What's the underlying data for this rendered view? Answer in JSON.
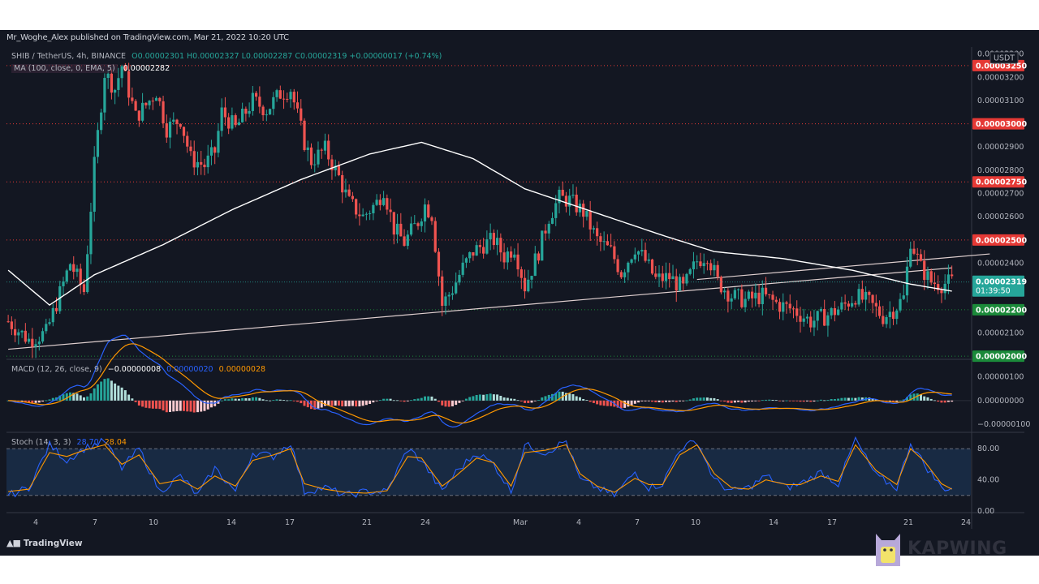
{
  "header": {
    "publisher_line": "Mr_Woghe_Alex published on TradingView.com, Mar 21, 2022 10:20 UTC"
  },
  "legend": {
    "symbol": "SHIB / TetherUS, 4h, BINANCE",
    "ohlc": "O0.00002301 H0.00002327 L0.00002287 C0.00002319 +0.00000017 (+0.74%)",
    "ma_label": "MA (100, close, 0, EMA, 5)",
    "ma_value": "0.00002282",
    "macd_label": "MACD (12, 26, close, 9)",
    "macd_hist": "−0.00000008",
    "macd_line": "0.00000020",
    "macd_signal": "0.00000028",
    "stoch_label": "Stoch (14, 3, 3)",
    "stoch_k": "28.70",
    "stoch_d": "28.04"
  },
  "colors": {
    "background": "#131722",
    "up_candle": "#26a69a",
    "down_candle": "#ef5350",
    "ma_line": "#ffffff",
    "macd_line": "#2962ff",
    "signal_line": "#ff9800",
    "stoch_k": "#2962ff",
    "stoch_d": "#ff9800",
    "resistance": "#e53935",
    "support": "#1b8a3a"
  },
  "branding": {
    "tradingview": "TradingView",
    "kapwing": "KAPWING"
  },
  "chart_data": [
    {
      "type": "candlestick",
      "title": "SHIB / TetherUS, 4h, BINANCE",
      "currency": "USDT",
      "ylim": [
        1.99e-05,
        3.33e-05
      ],
      "yticks": [
        "0.00003300",
        "0.00003200",
        "0.00003100",
        "0.00002900",
        "0.00002800",
        "0.00002700",
        "0.00002600",
        "0.00002400",
        "0.00002100"
      ],
      "x_ticks": [
        "4",
        "7",
        "10",
        "14",
        "17",
        "21",
        "24",
        "Mar",
        "4",
        "7",
        "10",
        "14",
        "17",
        "21",
        "24"
      ],
      "last_price": "0.00002319",
      "countdown": "01:39:50",
      "horizontal_levels": [
        {
          "value": 3.25e-05,
          "label": "0.00003250",
          "color": "#e53935"
        },
        {
          "value": 3e-05,
          "label": "0.00003000",
          "color": "#e53935"
        },
        {
          "value": 2.75e-05,
          "label": "0.00002750",
          "color": "#e53935"
        },
        {
          "value": 2.5e-05,
          "label": "0.00002500",
          "color": "#e53935"
        },
        {
          "value": 2.2e-05,
          "label": "0.00002200",
          "color": "#1b8a3a"
        },
        {
          "value": 2e-05,
          "label": "0.00002000",
          "color": "#1b8a3a"
        }
      ],
      "close_path": [
        [
          0,
          2.15e-05
        ],
        [
          6,
          2.07e-05
        ],
        [
          11,
          2.1e-05
        ],
        [
          15,
          2.27e-05
        ],
        [
          18,
          2.4e-05
        ],
        [
          22,
          2.28e-05
        ],
        [
          25,
          2.82e-05
        ],
        [
          28,
          3.22e-05
        ],
        [
          31,
          3.15e-05
        ],
        [
          33,
          3.25e-05
        ],
        [
          37,
          3.03e-05
        ],
        [
          40,
          3.08e-05
        ],
        [
          43,
          3.14e-05
        ],
        [
          46,
          2.98e-05
        ],
        [
          50,
          3.02e-05
        ],
        [
          53,
          2.85e-05
        ],
        [
          57,
          2.82e-05
        ],
        [
          60,
          2.88e-05
        ],
        [
          62,
          3.05e-05
        ],
        [
          66,
          2.98e-05
        ],
        [
          71,
          3.1e-05
        ],
        [
          75,
          3.06e-05
        ],
        [
          79,
          3.13e-05
        ],
        [
          82,
          3.15e-05
        ],
        [
          86,
          2.92e-05
        ],
        [
          88,
          2.84e-05
        ],
        [
          92,
          2.89e-05
        ],
        [
          96,
          2.77e-05
        ],
        [
          99,
          2.66e-05
        ],
        [
          103,
          2.6e-05
        ],
        [
          107,
          2.66e-05
        ],
        [
          109,
          2.72e-05
        ],
        [
          112,
          2.55e-05
        ],
        [
          115,
          2.49e-05
        ],
        [
          119,
          2.58e-05
        ],
        [
          121,
          2.65e-05
        ],
        [
          123,
          2.61e-05
        ],
        [
          126,
          2.22e-05
        ],
        [
          129,
          2.29e-05
        ],
        [
          132,
          2.38e-05
        ],
        [
          135,
          2.45e-05
        ],
        [
          138,
          2.48e-05
        ],
        [
          141,
          2.5e-05
        ],
        [
          144,
          2.43e-05
        ],
        [
          147,
          2.47e-05
        ],
        [
          150,
          2.3e-05
        ],
        [
          154,
          2.45e-05
        ],
        [
          157,
          2.6e-05
        ],
        [
          160,
          2.68e-05
        ],
        [
          163,
          2.67e-05
        ],
        [
          167,
          2.62e-05
        ],
        [
          171,
          2.5e-05
        ],
        [
          175,
          2.45e-05
        ],
        [
          178,
          2.36e-05
        ],
        [
          182,
          2.47e-05
        ],
        [
          185,
          2.41e-05
        ],
        [
          188,
          2.33e-05
        ],
        [
          192,
          2.34e-05
        ],
        [
          196,
          2.29e-05
        ],
        [
          200,
          2.41e-05
        ],
        [
          203,
          2.44e-05
        ],
        [
          206,
          2.32e-05
        ],
        [
          210,
          2.26e-05
        ],
        [
          214,
          2.24e-05
        ],
        [
          219,
          2.26e-05
        ],
        [
          224,
          2.22e-05
        ],
        [
          228,
          2.2e-05
        ],
        [
          233,
          2.15e-05
        ],
        [
          237,
          2.17e-05
        ],
        [
          242,
          2.21e-05
        ],
        [
          246,
          2.26e-05
        ],
        [
          250,
          2.23e-05
        ],
        [
          254,
          2.17e-05
        ],
        [
          257,
          2.2e-05
        ],
        [
          260,
          2.25e-05
        ],
        [
          262,
          2.5e-05
        ],
        [
          265,
          2.38e-05
        ],
        [
          268,
          2.32e-05
        ],
        [
          271,
          2.31e-05
        ],
        [
          274,
          2.32e-05
        ]
      ],
      "ema_path": [
        [
          0,
          2.37e-05
        ],
        [
          12,
          2.22e-05
        ],
        [
          25,
          2.35e-05
        ],
        [
          45,
          2.48e-05
        ],
        [
          65,
          2.63e-05
        ],
        [
          85,
          2.76e-05
        ],
        [
          105,
          2.87e-05
        ],
        [
          120,
          2.92e-05
        ],
        [
          135,
          2.85e-05
        ],
        [
          150,
          2.72e-05
        ],
        [
          170,
          2.62e-05
        ],
        [
          190,
          2.52e-05
        ],
        [
          205,
          2.45e-05
        ],
        [
          225,
          2.42e-05
        ],
        [
          245,
          2.37e-05
        ],
        [
          262,
          2.31e-05
        ],
        [
          274,
          2.28e-05
        ]
      ],
      "trendlines": [
        {
          "from": [
            0,
            2.03e-05
          ],
          "to": [
            274,
            2.38e-05
          ]
        },
        {
          "from": [
            200,
            2.33e-05
          ],
          "to": [
            285,
            2.44e-05
          ]
        }
      ]
    },
    {
      "type": "macd",
      "title": "MACD (12, 26, close, 9)",
      "yticks": [
        "0.00000100",
        "0.00000000",
        "−0.00000100"
      ],
      "ylim": [
        -1.3e-06,
        1.7e-06
      ]
    },
    {
      "type": "stochastic",
      "title": "Stoch (14, 3, 3)",
      "yticks": [
        "80.00",
        "40.00",
        "0.00"
      ],
      "ylim": [
        0,
        100
      ],
      "band": [
        20,
        80
      ],
      "k_path": [
        [
          0,
          20
        ],
        [
          6,
          30
        ],
        [
          12,
          85
        ],
        [
          17,
          65
        ],
        [
          22,
          80
        ],
        [
          28,
          90
        ],
        [
          33,
          55
        ],
        [
          38,
          80
        ],
        [
          44,
          25
        ],
        [
          50,
          45
        ],
        [
          55,
          20
        ],
        [
          60,
          55
        ],
        [
          66,
          25
        ],
        [
          71,
          75
        ],
        [
          77,
          70
        ],
        [
          82,
          88
        ],
        [
          86,
          25
        ],
        [
          92,
          30
        ],
        [
          98,
          20
        ],
        [
          104,
          25
        ],
        [
          110,
          25
        ],
        [
          116,
          80
        ],
        [
          120,
          65
        ],
        [
          126,
          25
        ],
        [
          130,
          50
        ],
        [
          136,
          75
        ],
        [
          141,
          60
        ],
        [
          146,
          25
        ],
        [
          150,
          85
        ],
        [
          156,
          75
        ],
        [
          162,
          90
        ],
        [
          166,
          40
        ],
        [
          171,
          30
        ],
        [
          176,
          20
        ],
        [
          182,
          50
        ],
        [
          186,
          30
        ],
        [
          190,
          35
        ],
        [
          195,
          80
        ],
        [
          200,
          90
        ],
        [
          205,
          40
        ],
        [
          210,
          25
        ],
        [
          215,
          30
        ],
        [
          220,
          45
        ],
        [
          226,
          30
        ],
        [
          230,
          35
        ],
        [
          236,
          50
        ],
        [
          241,
          35
        ],
        [
          246,
          92
        ],
        [
          252,
          45
        ],
        [
          258,
          30
        ],
        [
          262,
          88
        ],
        [
          266,
          60
        ],
        [
          271,
          30
        ],
        [
          274,
          28.7
        ]
      ],
      "d_path": [
        [
          0,
          25
        ],
        [
          6,
          28
        ],
        [
          12,
          75
        ],
        [
          17,
          70
        ],
        [
          22,
          78
        ],
        [
          28,
          85
        ],
        [
          33,
          60
        ],
        [
          38,
          72
        ],
        [
          44,
          35
        ],
        [
          50,
          40
        ],
        [
          55,
          28
        ],
        [
          60,
          45
        ],
        [
          66,
          32
        ],
        [
          71,
          65
        ],
        [
          77,
          72
        ],
        [
          82,
          80
        ],
        [
          86,
          35
        ],
        [
          92,
          28
        ],
        [
          98,
          24
        ],
        [
          104,
          23
        ],
        [
          110,
          26
        ],
        [
          116,
          70
        ],
        [
          120,
          68
        ],
        [
          126,
          32
        ],
        [
          130,
          45
        ],
        [
          136,
          68
        ],
        [
          141,
          62
        ],
        [
          146,
          32
        ],
        [
          150,
          75
        ],
        [
          156,
          78
        ],
        [
          162,
          85
        ],
        [
          166,
          48
        ],
        [
          171,
          32
        ],
        [
          176,
          24
        ],
        [
          182,
          42
        ],
        [
          186,
          34
        ],
        [
          190,
          34
        ],
        [
          195,
          72
        ],
        [
          200,
          85
        ],
        [
          205,
          48
        ],
        [
          210,
          30
        ],
        [
          215,
          28
        ],
        [
          220,
          40
        ],
        [
          226,
          34
        ],
        [
          230,
          34
        ],
        [
          236,
          45
        ],
        [
          241,
          38
        ],
        [
          246,
          85
        ],
        [
          252,
          52
        ],
        [
          258,
          34
        ],
        [
          262,
          80
        ],
        [
          266,
          64
        ],
        [
          271,
          35
        ],
        [
          274,
          28.04
        ]
      ]
    }
  ]
}
